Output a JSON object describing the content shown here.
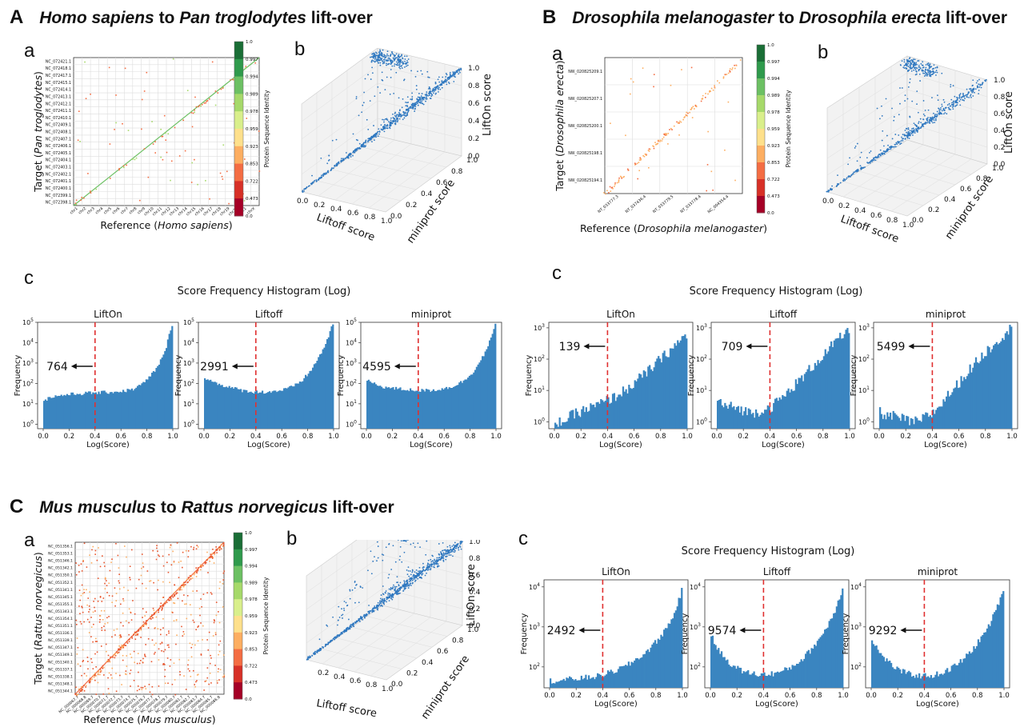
{
  "panels": [
    {
      "id": "A",
      "letter": "A",
      "title_parts": [
        {
          "t": "Homo sapiens",
          "i": true
        },
        {
          "t": " to ",
          "i": false
        },
        {
          "t": "Pan troglodytes",
          "i": true
        },
        {
          "t": " lift-over",
          "i": false
        }
      ],
      "sub_a": "a",
      "sub_b": "b",
      "sub_c": "c",
      "dotplot": {
        "colorbar_label": "Protein Sequence Identity",
        "colorbar_ticks": [
          "1.0",
          "0.997",
          "0.994",
          "0.989",
          "0.978",
          "0.959",
          "0.923",
          "0.853",
          "0.722",
          "0.473",
          "0.0"
        ],
        "ylabel_parts": [
          {
            "t": "Target (",
            "i": false
          },
          {
            "t": "Pan troglodytes",
            "i": true
          },
          {
            "t": ")",
            "i": false
          }
        ],
        "xlabel_parts": [
          {
            "t": "Reference (",
            "i": false
          },
          {
            "t": "Homo sapiens",
            "i": true
          },
          {
            "t": ")",
            "i": false
          }
        ],
        "y_ticks": [
          "NC_072421.1",
          "NC_072418.1",
          "NC_072417.1",
          "NC_072415.1",
          "NC_072414.1",
          "NC_072413.1",
          "NC_072412.1",
          "NC_072411.1",
          "NC_072410.1",
          "NC_072409.1",
          "NC_072408.1",
          "NC_072407.1",
          "NC_072406.1",
          "NC_072405.1",
          "NC_072404.1",
          "NC_072403.1",
          "NC_072402.1",
          "NC_072401.1",
          "NC_072400.1",
          "NC_072399.1",
          "NC_072398.1"
        ],
        "x_ticks": [
          "chr1",
          "chr2",
          "chr3",
          "chr4",
          "chr5",
          "chr6",
          "chr7",
          "chr8",
          "chr9",
          "chr10",
          "chr11",
          "chr12",
          "chr13",
          "chr14",
          "chr15",
          "chr16",
          "chr17",
          "chr18",
          "chr19",
          "chr20",
          "chr21",
          "chrX"
        ]
      },
      "scatter3d": {
        "xlabel": "Liftoff score",
        "ylabel": "miniprot score",
        "zlabel": "LiftOn score",
        "x_ticks": [
          "0.0",
          "0.2",
          "0.4",
          "0.6",
          "0.8",
          "1.0"
        ],
        "y_ticks": [
          "0.0",
          "0.2",
          "0.4",
          "0.6",
          "0.8",
          "1.0"
        ],
        "z_ticks": [
          "0.0",
          "0.2",
          "0.4",
          "0.6",
          "0.8",
          "1.0"
        ]
      },
      "hist": {
        "title": "Score Frequency Histogram (Log)",
        "xlabel": "Log(Score)",
        "ylabel": "Frequency",
        "x_ticks": [
          "0.0",
          "0.2",
          "0.4",
          "0.6",
          "0.8",
          "1.0"
        ],
        "y_ticks": [
          "10^0",
          "10^1",
          "10^2",
          "10^3",
          "10^4",
          "10^5"
        ],
        "subplots": [
          {
            "name": "LiftOn",
            "annotation": "764"
          },
          {
            "name": "Liftoff",
            "annotation": "2991"
          },
          {
            "name": "miniprot",
            "annotation": "4595"
          }
        ]
      }
    },
    {
      "id": "B",
      "letter": "B",
      "title_parts": [
        {
          "t": "Drosophila melanogaster",
          "i": true
        },
        {
          "t": " to ",
          "i": false
        },
        {
          "t": "Drosophila erecta",
          "i": true
        },
        {
          "t": " lift-over",
          "i": false
        }
      ],
      "sub_a": "a",
      "sub_b": "b",
      "sub_c": "c",
      "dotplot": {
        "colorbar_label": "Protein Sequence Identity",
        "colorbar_ticks": [
          "1.0",
          "0.997",
          "0.994",
          "0.989",
          "0.978",
          "0.959",
          "0.923",
          "0.853",
          "0.722",
          "0.473",
          "0.0"
        ],
        "ylabel_parts": [
          {
            "t": "Target (",
            "i": false
          },
          {
            "t": "Drosophila erecta",
            "i": true
          },
          {
            "t": ")",
            "i": false
          }
        ],
        "xlabel_parts": [
          {
            "t": "Reference (",
            "i": false
          },
          {
            "t": "Drosophila melanogaster",
            "i": true
          },
          {
            "t": ")",
            "i": false
          }
        ],
        "y_ticks": [
          "NW_020825209.1",
          "NW_020825207.1",
          "NW_020825200.1",
          "NW_020825198.1",
          "NW_020825194.1"
        ],
        "x_ticks": [
          "NT_033777.3",
          "NT_037436.4",
          "NT_033779.5",
          "NT_033778.4",
          "NC_004354.4"
        ]
      },
      "scatter3d": {
        "xlabel": "Liftoff score",
        "ylabel": "miniprot score",
        "zlabel": "LiftOn score",
        "x_ticks": [
          "0.0",
          "0.2",
          "0.4",
          "0.6",
          "0.8",
          "1.0"
        ],
        "y_ticks": [
          "0.0",
          "0.2",
          "0.4",
          "0.6",
          "0.8",
          "1.0"
        ],
        "z_ticks": [
          "0.0",
          "0.2",
          "0.4",
          "0.6",
          "0.8",
          "1.0"
        ]
      },
      "hist": {
        "title": "Score Frequency Histogram (Log)",
        "xlabel": "Log(Score)",
        "ylabel": "Frequency",
        "x_ticks": [
          "0.0",
          "0.2",
          "0.4",
          "0.6",
          "0.8",
          "1.0"
        ],
        "y_ticks": [
          "10^0",
          "10^1",
          "10^2",
          "10^3"
        ],
        "subplots": [
          {
            "name": "LiftOn",
            "annotation": "139"
          },
          {
            "name": "Liftoff",
            "annotation": "709"
          },
          {
            "name": "miniprot",
            "annotation": "5499"
          }
        ]
      }
    },
    {
      "id": "C",
      "letter": "C",
      "title_parts": [
        {
          "t": "Mus musculus",
          "i": true
        },
        {
          "t": " to ",
          "i": false
        },
        {
          "t": "Rattus norvegicus",
          "i": true
        },
        {
          "t": " lift-over",
          "i": false
        }
      ],
      "sub_a": "a",
      "sub_b": "b",
      "sub_c": "c",
      "dotplot": {
        "colorbar_label": "Protein Sequence Identity",
        "colorbar_ticks": [
          "1.0",
          "0.997",
          "0.994",
          "0.989",
          "0.978",
          "0.959",
          "0.923",
          "0.853",
          "0.722",
          "0.473",
          "0.0"
        ],
        "ylabel_parts": [
          {
            "t": "Target (",
            "i": false
          },
          {
            "t": "Rattus norvegicus",
            "i": true
          },
          {
            "t": ")",
            "i": false
          }
        ],
        "xlabel_parts": [
          {
            "t": "Reference (",
            "i": false
          },
          {
            "t": "Mus musculus",
            "i": true
          },
          {
            "t": ")",
            "i": false
          }
        ],
        "y_ticks": [
          "NC_051356.1",
          "NC_051353.1",
          "NC_051346.1",
          "NC_051342.1",
          "NC_051350.1",
          "NC_051352.1",
          "NC_051341.1",
          "NC_051345.1",
          "NC_051355.1",
          "NC_051343.1",
          "NC_051354.1",
          "NC_051351.1",
          "NC_051336.1",
          "NC_051339.1",
          "NC_051347.1",
          "NC_051349.1",
          "NC_051340.1",
          "NC_051337.1",
          "NC_051338.1",
          "NC_051348.1",
          "NC_051344.1"
        ],
        "x_ticks": [
          "NC_000067.7",
          "NC_000068.8",
          "NC_000069.7",
          "NC_000070.7",
          "NC_000071.7",
          "NC_000072.7",
          "NC_000073.7",
          "NC_000074.7",
          "NC_000075.7",
          "NC_000076.7",
          "NC_000077.7",
          "NC_000078.7",
          "NC_000079.7",
          "NC_000080.7",
          "NC_000081.7",
          "NC_000082.7",
          "NC_000083.7",
          "NC_000084.7",
          "NC_000085.7",
          "NC_000086.8"
        ]
      },
      "scatter3d": {
        "xlabel": "Liftoff score",
        "ylabel": "miniprot score",
        "zlabel": "LiftOn score",
        "x_ticks": [
          "0.2",
          "0.4",
          "0.6",
          "0.8",
          "1.0"
        ],
        "y_ticks": [
          "0.0",
          "0.2",
          "0.4",
          "0.6",
          "0.8",
          "1.0"
        ],
        "z_ticks": [
          "0.0",
          "0.2",
          "0.4",
          "0.6",
          "0.8",
          "1.0"
        ]
      },
      "hist": {
        "title": "Score Frequency Histogram (Log)",
        "xlabel": "Log(Score)",
        "ylabel": "Frequency",
        "x_ticks": [
          "0.0",
          "0.2",
          "0.4",
          "0.6",
          "0.8",
          "1.0"
        ],
        "y_ticks": [
          "10^2",
          "10^3",
          "10^4"
        ],
        "subplots": [
          {
            "name": "LiftOn",
            "annotation": "2492"
          },
          {
            "name": "Liftoff",
            "annotation": "9574"
          },
          {
            "name": "miniprot",
            "annotation": "9292"
          }
        ]
      }
    }
  ],
  "colors": {
    "bars": "#3a85c0",
    "scatter": "#2f78c0",
    "threshold": "#e03030",
    "grid": "#d9d9d9",
    "colorbar": [
      "#1a6e36",
      "#2f9a4c",
      "#6cc063",
      "#a6d96a",
      "#d9ef8b",
      "#fee08b",
      "#fdae61",
      "#f46d43",
      "#d73027",
      "#a50026"
    ]
  },
  "chart_data": [
    {
      "type": "heatmap",
      "panel": "A-a",
      "xlabel": "Reference (Homo sapiens)",
      "ylabel": "Target (Pan troglodytes)",
      "colorbar_label": "Protein Sequence Identity",
      "colorbar_ticks": [
        1.0,
        0.997,
        0.994,
        0.989,
        0.978,
        0.959,
        0.923,
        0.853,
        0.722,
        0.473,
        0.0
      ]
    },
    {
      "type": "scatter",
      "panel": "A-b",
      "xlabel": "Liftoff score",
      "ylabel": "miniprot score",
      "zlabel": "LiftOn score",
      "xlim": [
        0,
        1
      ],
      "ylim": [
        0,
        1
      ],
      "zlim": [
        0,
        1
      ]
    },
    {
      "type": "bar",
      "panel": "A-c",
      "title": "Score Frequency Histogram (Log)",
      "xlabel": "Log(Score)",
      "ylabel": "Frequency",
      "xlim": [
        0,
        1
      ],
      "yscale": "log",
      "ylim": [
        0.6,
        100000
      ],
      "threshold_x": 0.4,
      "subplots": [
        {
          "name": "LiftOn",
          "below_threshold_count": 764,
          "profile": [
            15,
            22,
            25,
            28,
            30,
            32,
            34,
            35,
            36,
            38,
            40,
            45,
            55,
            90,
            200,
            600,
            3000,
            80000
          ]
        },
        {
          "name": "Liftoff",
          "below_threshold_count": 2991,
          "profile": [
            200,
            120,
            90,
            70,
            55,
            45,
            40,
            38,
            38,
            40,
            45,
            55,
            80,
            150,
            400,
            1500,
            8000,
            80000
          ]
        },
        {
          "name": "miniprot",
          "below_threshold_count": 4595,
          "profile": [
            150,
            90,
            70,
            60,
            55,
            50,
            48,
            45,
            45,
            48,
            55,
            65,
            90,
            150,
            350,
            1200,
            6000,
            70000
          ]
        }
      ]
    },
    {
      "type": "heatmap",
      "panel": "B-a",
      "xlabel": "Reference (Drosophila melanogaster)",
      "ylabel": "Target (Drosophila erecta)",
      "colorbar_label": "Protein Sequence Identity",
      "colorbar_ticks": [
        1.0,
        0.997,
        0.994,
        0.989,
        0.978,
        0.959,
        0.923,
        0.853,
        0.722,
        0.473,
        0.0
      ]
    },
    {
      "type": "scatter",
      "panel": "B-b",
      "xlabel": "Liftoff score",
      "ylabel": "miniprot score",
      "zlabel": "LiftOn score",
      "xlim": [
        0,
        1
      ],
      "ylim": [
        0,
        1
      ],
      "zlim": [
        0,
        1
      ]
    },
    {
      "type": "bar",
      "panel": "B-c",
      "title": "Score Frequency Histogram (Log)",
      "xlabel": "Log(Score)",
      "ylabel": "Frequency",
      "xlim": [
        0,
        1
      ],
      "yscale": "log",
      "ylim": [
        0.6,
        1500
      ],
      "threshold_x": 0.4,
      "subplots": [
        {
          "name": "LiftOn",
          "below_threshold_count": 139,
          "profile": [
            1,
            1,
            1.5,
            2,
            2.5,
            3,
            4,
            5,
            7,
            10,
            15,
            25,
            40,
            70,
            120,
            200,
            350,
            600
          ]
        },
        {
          "name": "Liftoff",
          "below_threshold_count": 709,
          "profile": [
            5,
            3,
            3,
            2.5,
            2,
            2,
            2.5,
            3,
            5,
            8,
            15,
            25,
            50,
            90,
            160,
            300,
            500,
            900
          ]
        },
        {
          "name": "miniprot",
          "below_threshold_count": 5499,
          "profile": [
            2,
            1.5,
            1.5,
            1.2,
            1,
            1,
            1.5,
            2,
            4,
            8,
            15,
            30,
            60,
            110,
            200,
            350,
            600,
            1000
          ]
        }
      ]
    },
    {
      "type": "heatmap",
      "panel": "C-a",
      "xlabel": "Reference (Mus musculus)",
      "ylabel": "Target (Rattus norvegicus)",
      "colorbar_label": "Protein Sequence Identity",
      "colorbar_ticks": [
        1.0,
        0.997,
        0.994,
        0.989,
        0.978,
        0.959,
        0.923,
        0.853,
        0.722,
        0.473,
        0.0
      ]
    },
    {
      "type": "scatter",
      "panel": "C-b",
      "xlabel": "Liftoff score",
      "ylabel": "miniprot score",
      "zlabel": "LiftOn score",
      "xlim": [
        0,
        1
      ],
      "ylim": [
        0,
        1
      ],
      "zlim": [
        0,
        1
      ]
    },
    {
      "type": "bar",
      "panel": "C-c",
      "title": "Score Frequency Histogram (Log)",
      "xlabel": "Log(Score)",
      "ylabel": "Frequency",
      "xlim": [
        0,
        1
      ],
      "yscale": "log",
      "ylim": [
        30,
        15000
      ],
      "threshold_x": 0.4,
      "subplots": [
        {
          "name": "LiftOn",
          "below_threshold_count": 2492,
          "profile": [
            45,
            45,
            48,
            50,
            52,
            55,
            58,
            65,
            75,
            90,
            110,
            150,
            200,
            300,
            500,
            900,
            2000,
            8000
          ]
        },
        {
          "name": "Liftoff",
          "below_threshold_count": 9574,
          "profile": [
            600,
            250,
            150,
            100,
            80,
            70,
            65,
            65,
            68,
            75,
            90,
            120,
            170,
            280,
            500,
            1000,
            2500,
            9000
          ]
        },
        {
          "name": "miniprot",
          "below_threshold_count": 9292,
          "profile": [
            500,
            220,
            140,
            95,
            75,
            65,
            60,
            60,
            62,
            70,
            85,
            115,
            165,
            270,
            480,
            950,
            2400,
            8500
          ]
        }
      ]
    }
  ]
}
